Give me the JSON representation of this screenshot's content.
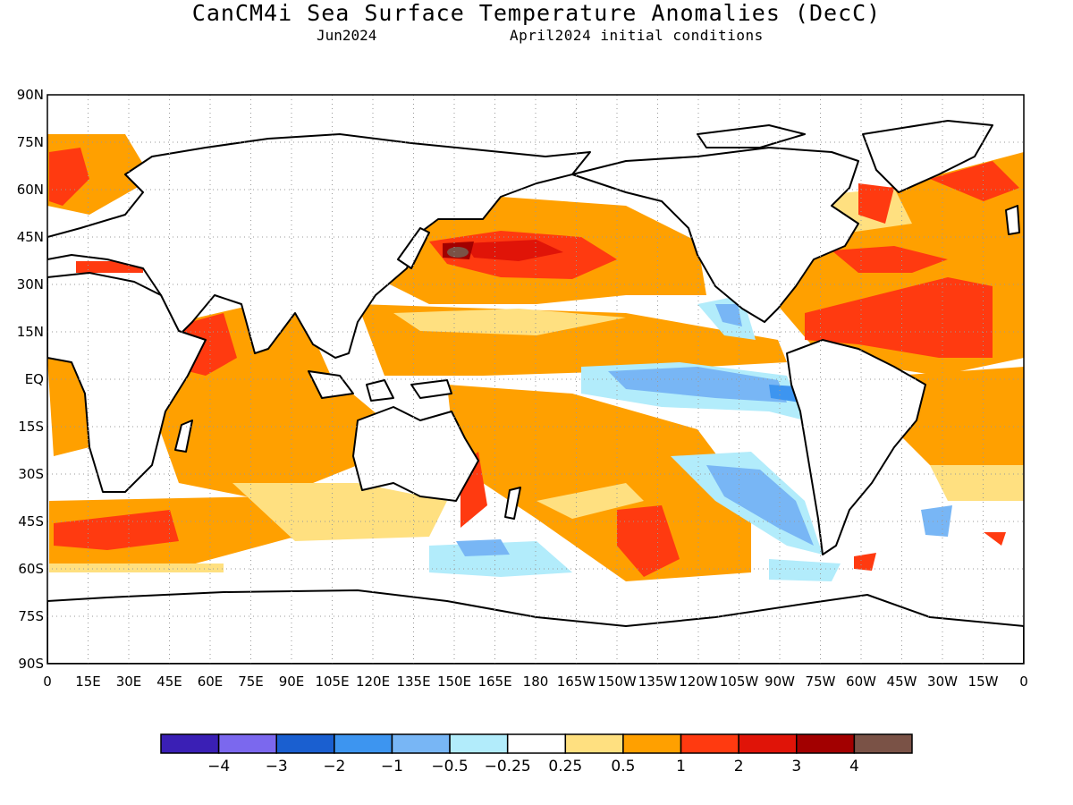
{
  "header": {
    "title": "CanCM4i Sea Surface Temperature Anomalies (DecC)",
    "valid_month": "Jun2024",
    "init": "April2024 initial conditions"
  },
  "map": {
    "projection": "cylindrical equidistant",
    "lon_range": [
      0,
      360
    ],
    "lat_range": [
      -90,
      90
    ],
    "grid": "dotted every 15 degrees",
    "lat_labels": [
      "90N",
      "75N",
      "60N",
      "45N",
      "30N",
      "15N",
      "EQ",
      "15S",
      "30S",
      "45S",
      "60S",
      "75S",
      "90S"
    ],
    "lon_labels": [
      "0",
      "15E",
      "30E",
      "45E",
      "60E",
      "75E",
      "90E",
      "105E",
      "120E",
      "135E",
      "150E",
      "165E",
      "180",
      "165W",
      "150W",
      "135W",
      "120W",
      "105W",
      "90W",
      "75W",
      "60W",
      "45W",
      "30W",
      "15W",
      "0"
    ]
  },
  "legend": {
    "boundaries": [
      "-4",
      "-3",
      "-2",
      "-1",
      "-0.5",
      "-0.25",
      "0.25",
      "0.5",
      "1",
      "2",
      "3",
      "4"
    ],
    "colors": [
      "#3a1fb5",
      "#7b68ee",
      "#1a5fd0",
      "#3d95f0",
      "#78b6f5",
      "#b2ecfb",
      "#ffffff",
      "#ffe080",
      "#ffa000",
      "#ff3a10",
      "#e01408",
      "#a20000",
      "#7a5246"
    ]
  }
}
